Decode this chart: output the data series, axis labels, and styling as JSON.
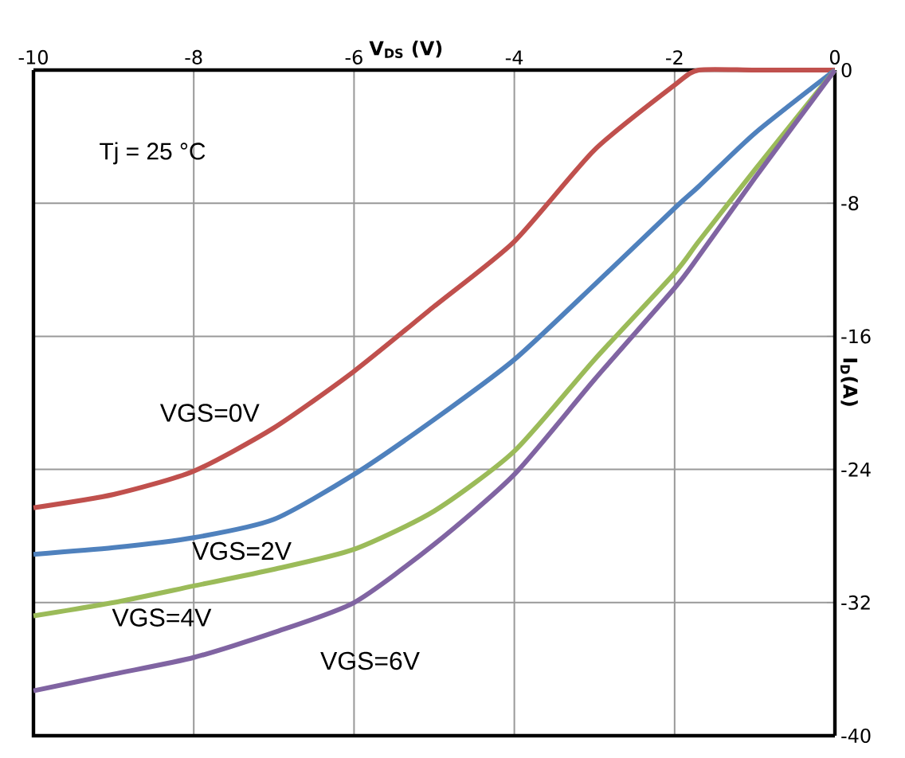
{
  "chart_data": {
    "type": "line",
    "xlabel": "V$_{DS}$ (V)",
    "ylabel": "I$_{D}$(A)",
    "x": [
      -10,
      -9,
      -8,
      -7,
      -6,
      -5,
      -4,
      -3,
      -2,
      -1.7,
      -1,
      0
    ],
    "series": [
      {
        "name": "VGS=0V",
        "color": "#c0504d",
        "values": [
          -26.3,
          -25.5,
          -24.1,
          -21.5,
          -18.1,
          -14.2,
          -10.3,
          -4.8,
          -0.9,
          0,
          0,
          0
        ]
      },
      {
        "name": "VGS=2V",
        "color": "#4f81bd",
        "values": [
          -29.1,
          -28.7,
          -28.1,
          -27,
          -24.3,
          -21,
          -17.4,
          -12.9,
          -8.3,
          -7,
          -3.8,
          0
        ]
      },
      {
        "name": "VGS=4V",
        "color": "#9bbb59",
        "values": [
          -32.8,
          -32,
          -31,
          -30,
          -28.8,
          -26.5,
          -22.9,
          -17.4,
          -12.2,
          -10.3,
          -6,
          0
        ]
      },
      {
        "name": "VGS=6V",
        "color": "#8064a2",
        "values": [
          -37.3,
          -36.3,
          -35.3,
          -33.8,
          -32,
          -28.5,
          -24.3,
          -18.6,
          -13.1,
          -11.2,
          -6.5,
          0
        ]
      }
    ],
    "xlim": [
      -10,
      0
    ],
    "xticks": [
      -10,
      -8,
      -6,
      -4,
      -2,
      0
    ],
    "ylim": [
      -40,
      0
    ],
    "yticks": [
      -40,
      -32,
      -24,
      -16,
      -8,
      0
    ],
    "annotations": [
      "Tj = 25 °C"
    ],
    "grid": true,
    "marker": "none",
    "line_style": "solid"
  }
}
